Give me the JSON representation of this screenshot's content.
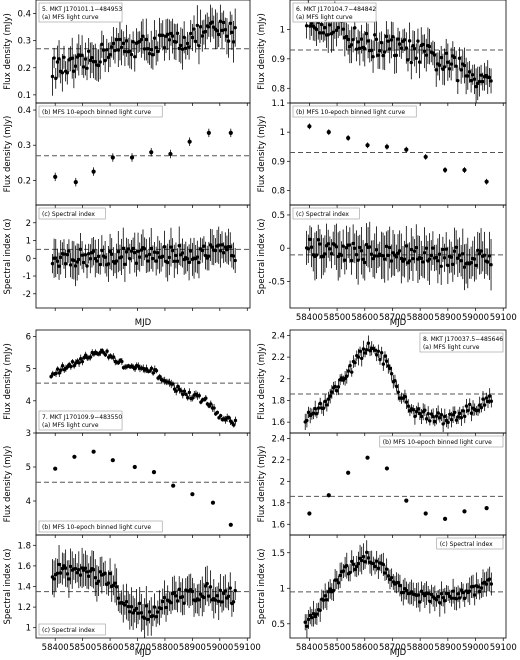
{
  "chart_data": [
    {
      "type": "scatter",
      "source": "MKT J170101.1−484953",
      "index": "5.",
      "xlabel": "MJD",
      "x_range": [
        58330,
        59110
      ],
      "x_ticks": [],
      "panels": [
        {
          "id": "a",
          "label": "(a) MFS light curve",
          "ylabel": "Flux density (mJy)",
          "ylim": [
            0.07,
            0.45
          ],
          "yticks": [
            0.1,
            0.2,
            0.3,
            0.4
          ],
          "ref": 0.27,
          "kind": "dense",
          "trend": [
            [
              58390,
              0.2
            ],
            [
              58460,
              0.2
            ],
            [
              58520,
              0.22
            ],
            [
              58600,
              0.27
            ],
            [
              58700,
              0.28
            ],
            [
              58800,
              0.29
            ],
            [
              58900,
              0.31
            ],
            [
              58980,
              0.34
            ],
            [
              59060,
              0.33
            ]
          ],
          "noise": 0.04,
          "err": 0.06
        },
        {
          "id": "b",
          "label": "(b) MFS 10-epoch binned light curve",
          "ylabel": "Flux density (mJy)",
          "ylim": [
            0.13,
            0.42
          ],
          "yticks": [
            0.2,
            0.3,
            0.4
          ],
          "ref": 0.27,
          "kind": "binned",
          "x": [
            58400,
            58475,
            58540,
            58610,
            58680,
            58750,
            58820,
            58890,
            58960,
            59040
          ],
          "y": [
            0.21,
            0.195,
            0.225,
            0.265,
            0.265,
            0.28,
            0.275,
            0.31,
            0.335,
            0.335
          ],
          "err": 0.012
        },
        {
          "id": "c",
          "label": "(c) Spectral index",
          "ylabel": "Spectral index (α)",
          "ylim": [
            -2.8,
            3.0
          ],
          "yticks": [
            -2,
            -1,
            0,
            1,
            2
          ],
          "ref": 0.5,
          "kind": "dense",
          "trend": [
            [
              58390,
              0
            ],
            [
              58600,
              0.1
            ],
            [
              58800,
              0.2
            ],
            [
              59060,
              0.3
            ]
          ],
          "noise": 0.5,
          "err": 0.9
        }
      ]
    },
    {
      "type": "scatter",
      "source": "MKT J170104.7−484842",
      "index": "6.",
      "xlabel": "MJD",
      "x_range": [
        58330,
        59110
      ],
      "x_ticks": [
        58400,
        58500,
        58600,
        58700,
        58800,
        58900,
        59000,
        59100
      ],
      "panels": [
        {
          "id": "a",
          "label": "(a) MFS light curve",
          "ylabel": "Flux density (mJy)",
          "ylim": [
            0.75,
            1.1
          ],
          "yticks": [
            0.8,
            0.9,
            1.0
          ],
          "ref": 0.93,
          "kind": "dense",
          "trend": [
            [
              58390,
              1.05
            ],
            [
              58500,
              1.0
            ],
            [
              58600,
              0.95
            ],
            [
              58700,
              0.94
            ],
            [
              58800,
              0.92
            ],
            [
              58900,
              0.88
            ],
            [
              59000,
              0.84
            ],
            [
              59060,
              0.85
            ]
          ],
          "noise": 0.04,
          "err": 0.05
        },
        {
          "id": "b",
          "label": "(b) MFS 10-epoch binned light curve",
          "ylabel": "Flux density (mJy)",
          "ylim": [
            0.75,
            1.1
          ],
          "yticks": [
            0.8,
            0.9,
            1.0,
            1.1
          ],
          "ref": 0.93,
          "kind": "binned",
          "x": [
            58400,
            58470,
            58540,
            58610,
            58680,
            58750,
            58820,
            58890,
            58960,
            59040
          ],
          "y": [
            1.02,
            1.0,
            0.98,
            0.955,
            0.95,
            0.94,
            0.915,
            0.87,
            0.87,
            0.83
          ],
          "err": 0.01
        },
        {
          "id": "c",
          "label": "(c) Spectral index",
          "ylabel": "Spectral index (α)",
          "ylim": [
            -0.9,
            0.65
          ],
          "yticks": [
            -0.5,
            0.0,
            0.5
          ],
          "ref": -0.1,
          "kind": "dense",
          "trend": [
            [
              58390,
              0
            ],
            [
              58700,
              -0.1
            ],
            [
              59060,
              -0.15
            ]
          ],
          "noise": 0.15,
          "err": 0.3
        }
      ]
    },
    {
      "type": "scatter",
      "source": "MKT J170109.9−483550",
      "index": "7.",
      "xlabel": "MJD",
      "x_range": [
        58330,
        59110
      ],
      "x_ticks": [
        58400,
        58500,
        58600,
        58700,
        58800,
        58900,
        59000,
        59100
      ],
      "panels": [
        {
          "id": "a",
          "label": "(a) MFS light curve",
          "ylabel": "Flux density (mJy)",
          "ylim": [
            3.0,
            6.2
          ],
          "yticks": [
            3,
            4,
            5,
            6
          ],
          "ref": 4.55,
          "kind": "dense",
          "trend": [
            [
              58385,
              4.8
            ],
            [
              58450,
              5.1
            ],
            [
              58520,
              5.4
            ],
            [
              58580,
              5.5
            ],
            [
              58650,
              5.1
            ],
            [
              58700,
              5.0
            ],
            [
              58760,
              4.9
            ],
            [
              58820,
              4.5
            ],
            [
              58880,
              4.2
            ],
            [
              58950,
              4.0
            ],
            [
              59000,
              3.5
            ],
            [
              59060,
              3.3
            ]
          ],
          "noise": 0.1,
          "err": 0.1
        },
        {
          "id": "b",
          "label": "(b) MFS 10-epoch binned light curve",
          "ylabel": "Flux density (mJy)",
          "ylim": [
            3.0,
            6.0
          ],
          "yticks": [
            4,
            5
          ],
          "ref": 4.55,
          "kind": "binned",
          "x": [
            58400,
            58470,
            58540,
            58610,
            58690,
            58760,
            58830,
            58900,
            58975,
            59040
          ],
          "y": [
            4.95,
            5.3,
            5.45,
            5.2,
            5.0,
            4.85,
            4.45,
            4.2,
            3.95,
            3.3
          ],
          "err": 0.04
        },
        {
          "id": "c",
          "label": "(c) Spectral index",
          "ylabel": "Spectral index (α)",
          "ylim": [
            0.9,
            1.9
          ],
          "yticks": [
            1.0,
            1.2,
            1.4,
            1.6,
            1.8
          ],
          "ref": 1.35,
          "kind": "dense",
          "trend": [
            [
              58390,
              1.55
            ],
            [
              58500,
              1.55
            ],
            [
              58600,
              1.45
            ],
            [
              58650,
              1.2
            ],
            [
              58750,
              1.15
            ],
            [
              58850,
              1.3
            ],
            [
              58950,
              1.35
            ],
            [
              59060,
              1.3
            ]
          ],
          "noise": 0.08,
          "err": 0.15
        }
      ]
    },
    {
      "type": "scatter",
      "source": "MKT J170037.5−485646",
      "index": "8.",
      "xlabel": "MJD",
      "x_range": [
        58330,
        59110
      ],
      "x_ticks": [
        58400,
        58500,
        58600,
        58700,
        58800,
        58900,
        59000,
        59100
      ],
      "panels": [
        {
          "id": "a",
          "label": "(a) MFS light curve",
          "ylabel": "Flux density (mJy)",
          "ylim": [
            1.5,
            2.45
          ],
          "yticks": [
            1.6,
            1.8,
            2.0,
            2.2,
            2.4
          ],
          "ref": 1.86,
          "kind": "dense",
          "trend": [
            [
              58385,
              1.65
            ],
            [
              58450,
              1.75
            ],
            [
              58520,
              2.0
            ],
            [
              58580,
              2.2
            ],
            [
              58620,
              2.3
            ],
            [
              58680,
              2.15
            ],
            [
              58720,
              1.85
            ],
            [
              58780,
              1.7
            ],
            [
              58850,
              1.65
            ],
            [
              58900,
              1.62
            ],
            [
              58960,
              1.7
            ],
            [
              59020,
              1.75
            ],
            [
              59060,
              1.85
            ]
          ],
          "noise": 0.05,
          "err": 0.06
        },
        {
          "id": "b",
          "label": "(b) MFS 10-epoch binned light curve",
          "ylabel": "Flux density (mJy)",
          "ylim": [
            1.5,
            2.45
          ],
          "yticks": [
            1.6,
            1.8,
            2.0,
            2.2,
            2.4
          ],
          "ref": 1.86,
          "kind": "binned",
          "x": [
            58400,
            58470,
            58540,
            58610,
            58680,
            58750,
            58820,
            58890,
            58960,
            59040
          ],
          "y": [
            1.7,
            1.87,
            2.08,
            2.22,
            2.12,
            1.82,
            1.7,
            1.65,
            1.72,
            1.75
          ],
          "err": 0.01
        },
        {
          "id": "c",
          "label": "(c) Spectral index",
          "ylabel": "Spectral index (α)",
          "ylim": [
            0.3,
            1.75
          ],
          "yticks": [
            0.5,
            1.0,
            1.5
          ],
          "ref": 0.95,
          "kind": "dense",
          "trend": [
            [
              58385,
              0.5
            ],
            [
              58450,
              0.8
            ],
            [
              58520,
              1.2
            ],
            [
              58600,
              1.45
            ],
            [
              58650,
              1.35
            ],
            [
              58700,
              1.1
            ],
            [
              58780,
              0.9
            ],
            [
              58850,
              0.85
            ],
            [
              58950,
              0.9
            ],
            [
              59060,
              1.1
            ]
          ],
          "noise": 0.08,
          "err": 0.15
        }
      ]
    }
  ]
}
